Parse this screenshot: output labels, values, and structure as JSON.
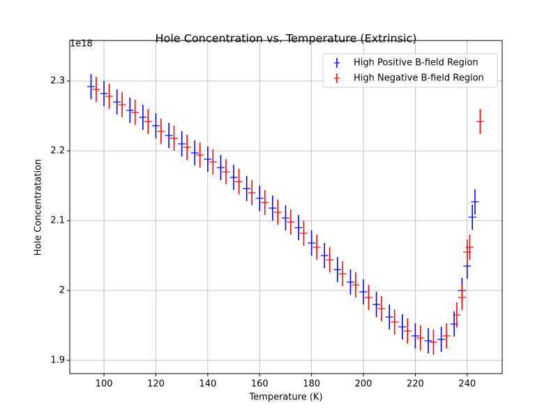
{
  "chart_data": {
    "type": "errorbar",
    "title": "Hole Concentration vs. Temperature (Extrinsic)",
    "x_label": "Temperature (K)",
    "y_label": "Hole Concentratation",
    "y_offset_label": "1e18",
    "xlim": [
      86.8,
      253.5
    ],
    "xticks": [
      100,
      120,
      140,
      160,
      180,
      200,
      220,
      240
    ],
    "ylim": [
      1.881,
      2.358
    ],
    "yticks": [
      1.9,
      2.0,
      2.1,
      2.2,
      2.3
    ],
    "grid": true,
    "legend": "upper right",
    "series": [
      {
        "name": "High Positive B-field Region",
        "color": "#0000ff",
        "yerr": 0.018,
        "xerr": 1.5,
        "x": [
          95,
          100,
          105,
          110,
          115,
          120,
          125,
          130,
          135,
          140,
          145,
          150,
          155,
          160,
          165,
          170,
          175,
          180,
          185,
          190,
          195,
          200,
          205,
          210,
          215,
          220,
          225,
          230,
          235,
          238,
          240,
          242,
          243
        ],
        "values": [
          2.292,
          2.282,
          2.27,
          2.258,
          2.248,
          2.236,
          2.222,
          2.21,
          2.197,
          2.188,
          2.176,
          2.162,
          2.146,
          2.132,
          2.118,
          2.104,
          2.09,
          2.068,
          2.05,
          2.03,
          2.012,
          1.998,
          1.98,
          1.962,
          1.948,
          1.935,
          1.928,
          1.93,
          1.952,
          2.0,
          2.035,
          2.105,
          2.127
        ]
      },
      {
        "name": "High Negative B-field Region",
        "color": "#ff0000",
        "yerr": 0.018,
        "xerr": 1.5,
        "x": [
          97,
          102,
          107,
          112,
          117,
          122,
          127,
          132,
          137,
          142,
          147,
          152,
          157,
          162,
          167,
          172,
          177,
          182,
          187,
          192,
          197,
          202,
          207,
          212,
          217,
          222,
          227,
          232,
          236,
          238,
          240,
          241,
          245
        ],
        "values": [
          2.288,
          2.278,
          2.266,
          2.255,
          2.242,
          2.228,
          2.218,
          2.205,
          2.194,
          2.184,
          2.17,
          2.156,
          2.14,
          2.126,
          2.112,
          2.098,
          2.082,
          2.062,
          2.044,
          2.024,
          2.008,
          1.99,
          1.974,
          1.955,
          1.942,
          1.932,
          1.926,
          1.935,
          1.965,
          1.99,
          2.055,
          2.062,
          2.242
        ]
      }
    ]
  }
}
